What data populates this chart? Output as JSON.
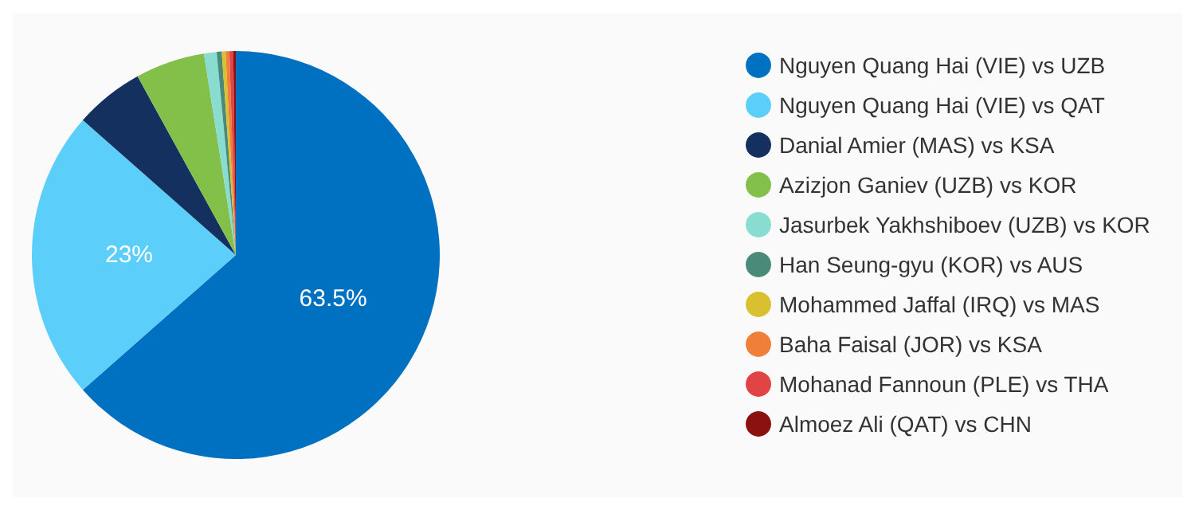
{
  "chart_data": {
    "type": "pie",
    "categories": [
      "Nguyen Quang Hai (VIE) vs UZB",
      "Nguyen Quang Hai (VIE) vs QAT",
      "Danial Amier (MAS) vs KSA",
      "Azizjon Ganiev (UZB) vs KOR",
      "Jasurbek Yakhshiboev (UZB) vs KOR",
      "Han Seung-gyu (KOR) vs AUS",
      "Mohammed Jaffal (IRQ) vs MAS",
      "Baha Faisal (JOR) vs KSA",
      "Mohanad Fannoun (PLE) vs THA",
      "Almoez Ali (QAT) vs CHN"
    ],
    "values": [
      63.5,
      23,
      5.5,
      5.5,
      1,
      0.4,
      0.3,
      0.3,
      0.3,
      0.2
    ],
    "colors": [
      "#0070c0",
      "#5bcefa",
      "#14305f",
      "#82c04a",
      "#88ddd0",
      "#4a8a78",
      "#d9c02e",
      "#f07f3a",
      "#e04444",
      "#8b1010"
    ],
    "value_labels": [
      "63.5%",
      "23%",
      null,
      null,
      null,
      null,
      null,
      null,
      null,
      null
    ],
    "legend": "right"
  }
}
